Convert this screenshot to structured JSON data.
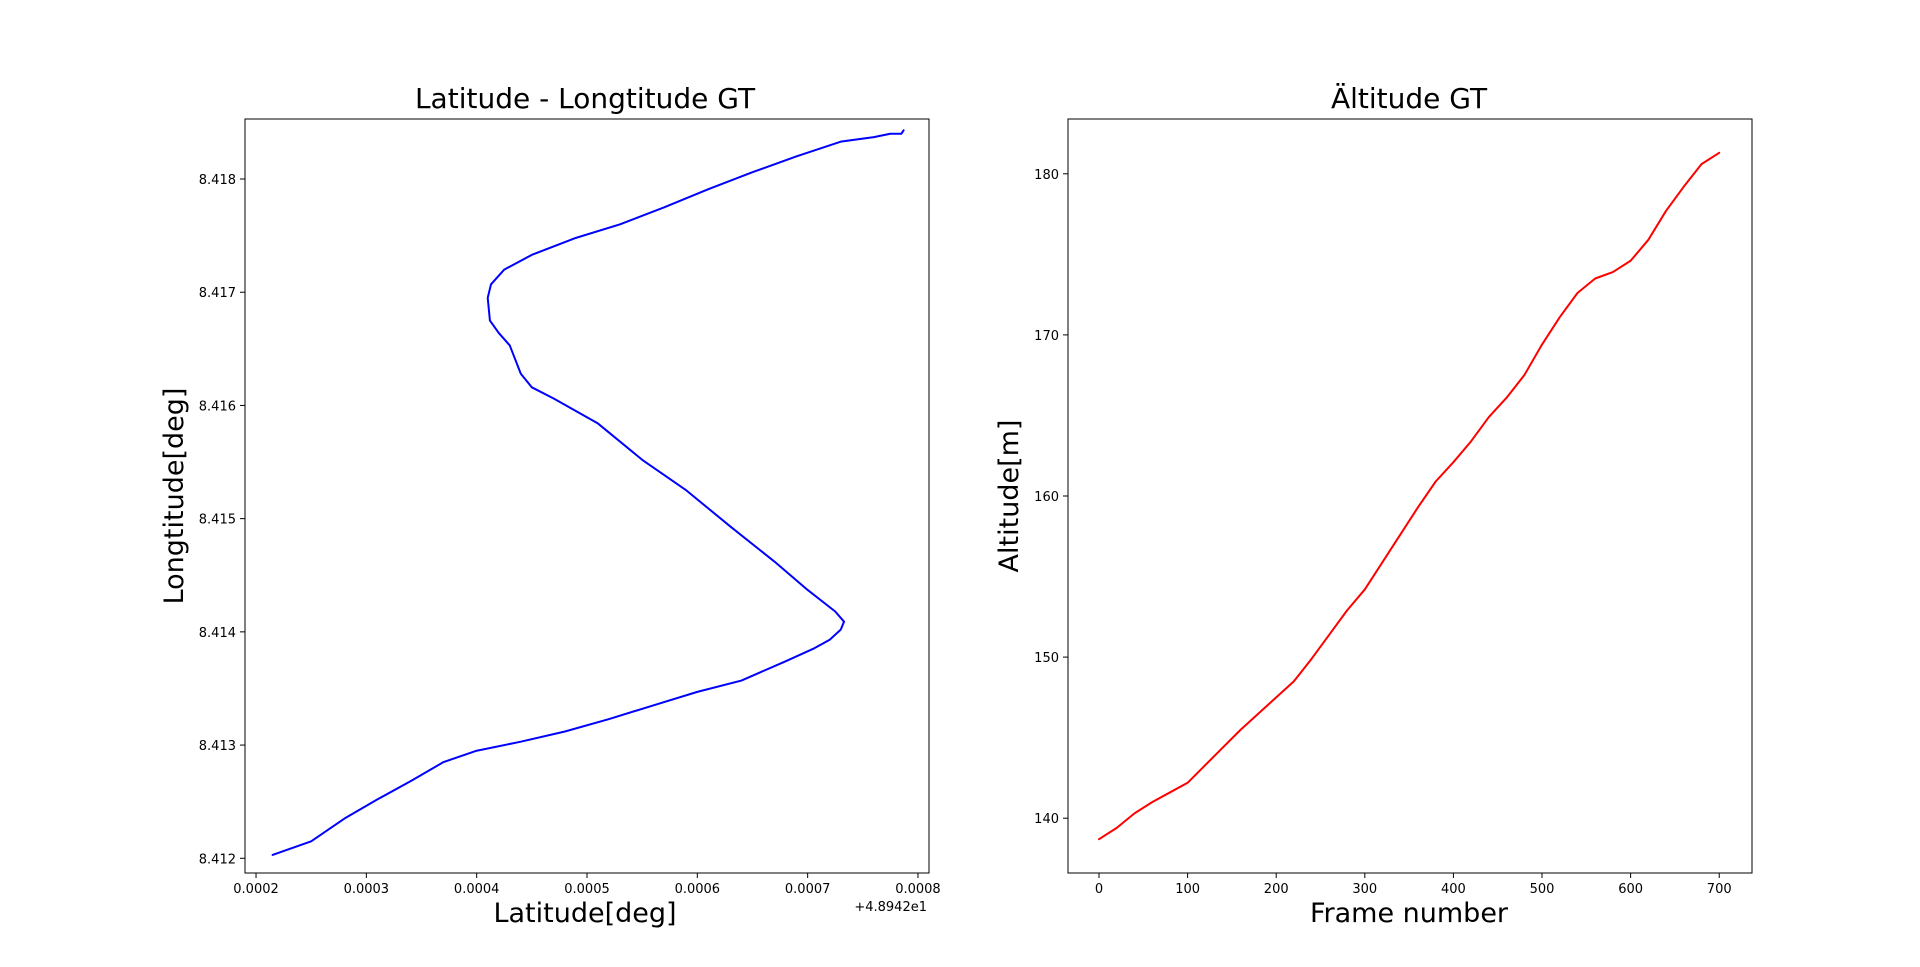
{
  "chart_data": [
    {
      "type": "line",
      "title": "Latitude - Longtitude GT",
      "xlabel": "Latitude[deg]",
      "ylabel": "Longtitude[deg]",
      "x_offset_text": "+4.8942e1",
      "xlim": [
        0.00019,
        0.00081
      ],
      "ylim": [
        8.41187,
        8.41853
      ],
      "xticks": [
        0.0002,
        0.0003,
        0.0004,
        0.0005,
        0.0006,
        0.0007,
        0.0008
      ],
      "xtick_labels": [
        "0.0002",
        "0.0003",
        "0.0004",
        "0.0005",
        "0.0006",
        "0.0007",
        "0.0008"
      ],
      "yticks": [
        8.412,
        8.413,
        8.414,
        8.415,
        8.416,
        8.417,
        8.418
      ],
      "ytick_labels": [
        "8.412",
        "8.413",
        "8.414",
        "8.415",
        "8.416",
        "8.417",
        "8.418"
      ],
      "grid": false,
      "series": [
        {
          "color": "#0000ff",
          "x": [
            0.000215,
            0.00025,
            0.00028,
            0.00031,
            0.00034,
            0.00037,
            0.0004,
            0.00044,
            0.00048,
            0.00052,
            0.00056,
            0.0006,
            0.00064,
            0.00068,
            0.000705,
            0.00072,
            0.00073,
            0.000733,
            0.000725,
            0.0007,
            0.00067,
            0.00063,
            0.00059,
            0.00055,
            0.00051,
            0.00047,
            0.00045,
            0.00044,
            0.00043,
            0.00042,
            0.000412,
            0.00041,
            0.000413,
            0.000425,
            0.00045,
            0.00049,
            0.00053,
            0.00057,
            0.00061,
            0.00065,
            0.00069,
            0.00073,
            0.00076,
            0.000775,
            0.000785,
            0.000787
          ],
          "y": [
            8.41203,
            8.41215,
            8.41235,
            8.41252,
            8.41268,
            8.41285,
            8.41295,
            8.41303,
            8.41312,
            8.41323,
            8.41335,
            8.41347,
            8.41357,
            8.41374,
            8.41385,
            8.41393,
            8.41402,
            8.41409,
            8.41418,
            8.41437,
            8.41462,
            8.41493,
            8.41525,
            8.41552,
            8.41584,
            8.41606,
            8.41616,
            8.41628,
            8.41653,
            8.41664,
            8.41675,
            8.41695,
            8.41707,
            8.4172,
            8.41733,
            8.41748,
            8.4176,
            8.41775,
            8.41791,
            8.41806,
            8.4182,
            8.41833,
            8.41837,
            8.4184,
            8.4184,
            8.41843
          ]
        }
      ]
    },
    {
      "type": "line",
      "title": "Ältitude GT",
      "xlabel": "Frame number",
      "ylabel": "Altitude[m]",
      "xlim": [
        -35,
        737
      ],
      "ylim": [
        136.6,
        183.4
      ],
      "xticks": [
        0,
        100,
        200,
        300,
        400,
        500,
        600,
        700
      ],
      "xtick_labels": [
        "0",
        "100",
        "200",
        "300",
        "400",
        "500",
        "600",
        "700"
      ],
      "yticks": [
        140,
        150,
        160,
        170,
        180
      ],
      "ytick_labels": [
        "140",
        "150",
        "160",
        "170",
        "180"
      ],
      "grid": false,
      "series": [
        {
          "color": "#ff0000",
          "x": [
            0,
            20,
            40,
            60,
            80,
            100,
            120,
            140,
            160,
            180,
            200,
            220,
            240,
            260,
            280,
            300,
            320,
            340,
            360,
            380,
            400,
            420,
            440,
            460,
            480,
            500,
            520,
            540,
            560,
            580,
            600,
            620,
            640,
            660,
            680,
            700
          ],
          "y": [
            138.7,
            139.4,
            140.3,
            141.0,
            141.6,
            142.2,
            143.3,
            144.4,
            145.5,
            146.5,
            147.5,
            148.5,
            149.9,
            151.4,
            152.9,
            154.2,
            155.9,
            157.6,
            159.3,
            160.9,
            162.1,
            163.4,
            164.9,
            166.1,
            167.5,
            169.4,
            171.1,
            172.6,
            173.5,
            173.9,
            174.6,
            175.9,
            177.7,
            179.2,
            180.6,
            181.3
          ]
        }
      ]
    }
  ]
}
